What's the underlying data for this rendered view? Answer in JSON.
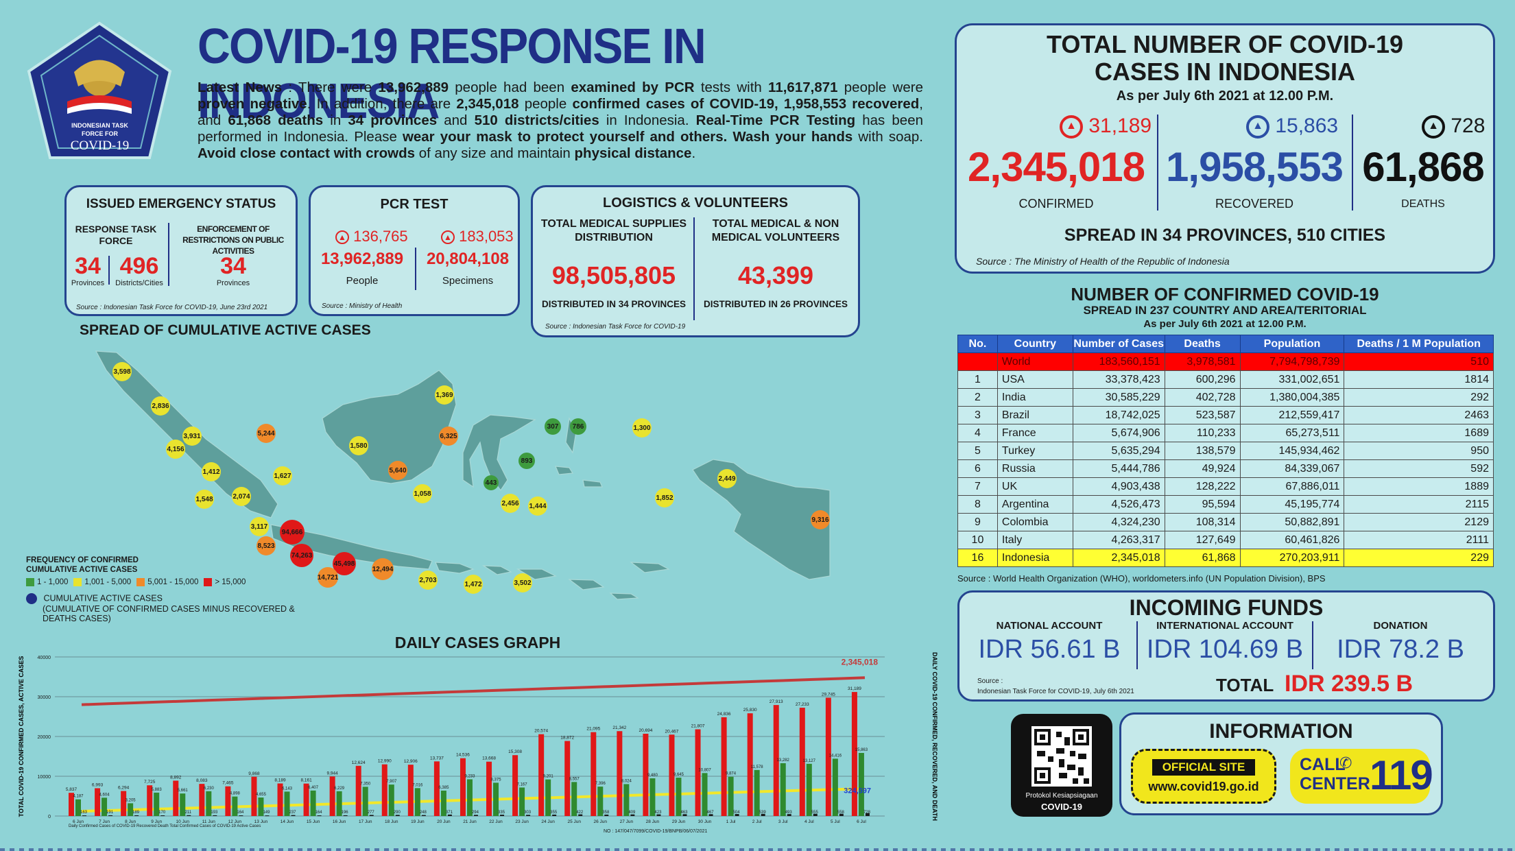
{
  "header": {
    "title": "COVID-19 RESPONSE IN INDONESIA",
    "logo_text_1": "INDONESIAN TASK",
    "logo_text_2": "FORCE FOR",
    "logo_text_3": "COVID-19",
    "news_html": "<b>Latest News</b> : There were <b>13,962,889</b> people had been <b>examined by PCR</b> tests with <b>11,617,871</b> people were <b>proven negative</b>. In addition, there are <b>2,345,018</b> people <b>confirmed cases of COVID-19, 1,958,553 recovered</b>, and <b>61,868 deaths</b> in <b>34 provinces</b> and <b>510 districts/cities</b> in Indonesia. <b>Real-Time PCR Testing</b> has been performed in Indonesia. Please <b>wear your mask to protect yourself and others. Wash your hands</b> with soap. <b>Avoid close contact with crowds</b> of any size and maintain <b>physical distance</b>."
  },
  "emergency": {
    "title": "ISSUED EMERGENCY STATUS",
    "col1_title": "RESPONSE TASK FORCE",
    "col2_title": "ENFORCEMENT OF RESTRICTIONS ON PUBLIC ACTIVITIES",
    "prov_value": "34",
    "prov_label": "Provinces",
    "dist_value": "496",
    "dist_label": "Districts/Cities",
    "enf_value": "34",
    "enf_label": "Provinces",
    "source": "Source : Indonesian Task Force for COVID-19, June 23rd 2021"
  },
  "pcr": {
    "title": "PCR TEST",
    "people_delta": "136,765",
    "specimens_delta": "183,053",
    "people_value": "13,962,889",
    "specimens_value": "20,804,108",
    "people_label": "People",
    "specimens_label": "Specimens",
    "source": "Source : Ministry of Health"
  },
  "logistics": {
    "title": "LOGISTICS & VOLUNTEERS",
    "col1_title": "TOTAL MEDICAL SUPPLIES DISTRIBUTION",
    "col1_value": "98,505,805",
    "col1_note": "DISTRIBUTED IN 34 PROVINCES",
    "col2_title": "TOTAL MEDICAL & NON MEDICAL VOLUNTEERS",
    "col2_value": "43,399",
    "col2_note": "DISTRIBUTED IN 26 PROVINCES",
    "source": "Source : Indonesian Task Force for COVID-19"
  },
  "totals": {
    "title_1": "TOTAL NUMBER OF COVID-19",
    "title_2": "CASES IN INDONESIA",
    "asof": "As per July 6th 2021 at 12.00 P.M.",
    "confirmed_delta": "31,189",
    "confirmed_value": "2,345,018",
    "confirmed_label": "CONFIRMED",
    "recovered_delta": "15,863",
    "recovered_value": "1,958,553",
    "recovered_label": "RECOVERED",
    "deaths_delta": "728",
    "deaths_value": "61,868",
    "deaths_label": "DEATHS",
    "spread": "SPREAD IN 34 PROVINCES, 510 CITIES",
    "source": "Source : The Ministry of Health of the Republic of Indonesia",
    "color_confirmed": "#e02424",
    "color_recovered": "#2b4ea5",
    "color_deaths": "#111111"
  },
  "world_table": {
    "title": "NUMBER OF CONFIRMED COVID-19",
    "subtitle": "SPREAD IN 237 COUNTRY AND AREA/TERITORIAL",
    "asof": "As per July 6th 2021 at 12.00 P.M.",
    "headers": [
      "No.",
      "Country",
      "Number of Cases",
      "Deaths",
      "Population",
      "Deaths / 1 M Population"
    ],
    "rows": [
      [
        "",
        "World",
        "183,560,151",
        "3,978,581",
        "7,794,798,739",
        "510"
      ],
      [
        "1",
        "USA",
        "33,378,423",
        "600,296",
        "331,002,651",
        "1814"
      ],
      [
        "2",
        "India",
        "30,585,229",
        "402,728",
        "1,380,004,385",
        "292"
      ],
      [
        "3",
        "Brazil",
        "18,742,025",
        "523,587",
        "212,559,417",
        "2463"
      ],
      [
        "4",
        "France",
        "5,674,906",
        "110,233",
        "65,273,511",
        "1689"
      ],
      [
        "5",
        "Turkey",
        "5,635,294",
        "138,579",
        "145,934,462",
        "950"
      ],
      [
        "6",
        "Russia",
        "5,444,786",
        "49,924",
        "84,339,067",
        "592"
      ],
      [
        "7",
        "UK",
        "4,903,438",
        "128,222",
        "67,886,011",
        "1889"
      ],
      [
        "8",
        "Argentina",
        "4,526,473",
        "95,594",
        "45,195,774",
        "2115"
      ],
      [
        "9",
        "Colombia",
        "4,324,230",
        "108,314",
        "50,882,891",
        "2129"
      ],
      [
        "10",
        "Italy",
        "4,263,317",
        "127,649",
        "60,461,826",
        "2111"
      ],
      [
        "16",
        "Indonesia",
        "2,345,018",
        "61,868",
        "270,203,911",
        "229"
      ]
    ],
    "source": "Source : World Health Organization (WHO), worldometers.info (UN Population Division), BPS"
  },
  "funds": {
    "title": "INCOMING FUNDS",
    "national_label": "NATIONAL ACCOUNT",
    "national_value": "IDR 56.61 B",
    "international_label": "INTERNATIONAL ACCOUNT",
    "international_value": "IDR 104.69 B",
    "donation_label": "DONATION",
    "donation_value": "IDR 78.2 B",
    "source_1": "Source :",
    "source_2": "Indonesian Task Force for COVID-19, July 6th 2021",
    "total_label": "TOTAL",
    "total_value": "IDR 239.5 B"
  },
  "info": {
    "qr_caption_1": "Protokol Kesiapsiagaan",
    "qr_caption_2": "COVID-19",
    "title": "INFORMATION",
    "site_label": "OFFICIAL SITE",
    "site_url": "www.covid19.go.id",
    "call_label_1": "CALL",
    "call_label_2": "CENTER",
    "call_number": "119"
  },
  "map": {
    "title": "SPREAD OF CUMULATIVE ACTIVE CASES",
    "legend_title_1": "FREQUENCY OF CONFIRMED",
    "legend_title_2": "CUMULATIVE ACTIVE CASES",
    "legend_items": [
      {
        "label": "1 - 1,000",
        "color": "#3e9b3e"
      },
      {
        "label": "1,001 - 5,000",
        "color": "#e9e32e"
      },
      {
        "label": "5,001 - 15,000",
        "color": "#f08a2a"
      },
      {
        "label": "> 15,000",
        "color": "#e01818"
      }
    ],
    "legend_dot_label": "CUMULATIVE ACTIVE CASES",
    "legend_dot_note": "(CUMULATIVE OF CONFIRMED CASES MINUS RECOVERED & DEATHS CASES)",
    "bubbles": [
      {
        "v": "3,598",
        "c": "y"
      },
      {
        "v": "2,836",
        "c": "y"
      },
      {
        "v": "4,156",
        "c": "y"
      },
      {
        "v": "3,931",
        "c": "y"
      },
      {
        "v": "5,244",
        "c": "o"
      },
      {
        "v": "1,412",
        "c": "y"
      },
      {
        "v": "1,548",
        "c": "y"
      },
      {
        "v": "2,074",
        "c": "y"
      },
      {
        "v": "1,627",
        "c": "y"
      },
      {
        "v": "3,117",
        "c": "y"
      },
      {
        "v": "8,523",
        "c": "o"
      },
      {
        "v": "94,666",
        "c": "r"
      },
      {
        "v": "74,263",
        "c": "r"
      },
      {
        "v": "45,498",
        "c": "r"
      },
      {
        "v": "14,721",
        "c": "o"
      },
      {
        "v": "12,494",
        "c": "o"
      },
      {
        "v": "2,703",
        "c": "y"
      },
      {
        "v": "1,472",
        "c": "y"
      },
      {
        "v": "3,502",
        "c": "y"
      },
      {
        "v": "1,580",
        "c": "y"
      },
      {
        "v": "5,640",
        "c": "o"
      },
      {
        "v": "1,058",
        "c": "y"
      },
      {
        "v": "1,369",
        "c": "y"
      },
      {
        "v": "6,325",
        "c": "o"
      },
      {
        "v": "307",
        "c": "g"
      },
      {
        "v": "786",
        "c": "g"
      },
      {
        "v": "893",
        "c": "g"
      },
      {
        "v": "443",
        "c": "g"
      },
      {
        "v": "2,456",
        "c": "y"
      },
      {
        "v": "1,444",
        "c": "y"
      },
      {
        "v": "1,300",
        "c": "y"
      },
      {
        "v": "2,449",
        "c": "y"
      },
      {
        "v": "1,852",
        "c": "y"
      },
      {
        "v": "9,316",
        "c": "o"
      }
    ]
  },
  "chart_data": {
    "type": "bar",
    "title": "DAILY CASES GRAPH",
    "ylabel_left": "TOTAL COVID-19 CONFIRMED CASES, ACTIVE CASES",
    "ylabel_right": "DAILY COVID-19 CONFIRMED, RECOVERED, AND DEATH",
    "ylim": [
      0,
      40000
    ],
    "yticks": [
      "0",
      "10000",
      "20000",
      "30000",
      "40000"
    ],
    "categories": [
      "6 Jun",
      "7 Jun",
      "8 Jun",
      "9 Jun",
      "10 Jun",
      "11 Jun",
      "12 Jun",
      "13 Jun",
      "14 Jun",
      "15 Jun",
      "16 Jun",
      "17 Jun",
      "18 Jun",
      "19 Jun",
      "20 Jun",
      "21 Jun",
      "22 Jun",
      "23 Jun",
      "24 Jun",
      "25 Jun",
      "26 Jun",
      "27 Jun",
      "28 Jun",
      "29 Jun",
      "30 Jun",
      "1 Jul",
      "2 Jul",
      "3 Jul",
      "4 Jul",
      "5 Jul",
      "6 Jul"
    ],
    "series": [
      {
        "name": "Daily Confirmed Cases of COVID-19",
        "color": "#e01818",
        "values": [
          5837,
          6993,
          6294,
          7725,
          8892,
          8083,
          7465,
          9868,
          8189,
          8161,
          9944,
          12624,
          12990,
          12906,
          13737,
          14536,
          13668,
          15308,
          20574,
          18872,
          21095,
          21342,
          20694,
          20467,
          21807,
          24836,
          25830,
          27913,
          27233,
          29745,
          31189
        ]
      },
      {
        "name": "Recovered",
        "color": "#2f8a2f",
        "values": [
          4187,
          4604,
          3205,
          5883,
          5661,
          6230,
          4898,
          4655,
          6143,
          6407,
          6229,
          7350,
          7907,
          7016,
          6385,
          9233,
          8375,
          7167,
          9201,
          8557,
          7396,
          8024,
          9480,
          9645,
          10807,
          9874,
          11578,
          13282,
          13127,
          14416,
          15863
        ]
      },
      {
        "name": "Death",
        "color": "#1a1a1a",
        "values": [
          163,
          191,
          189,
          170,
          211,
          193,
          164,
          149,
          237,
          164,
          196,
          277,
          290,
          248,
          371,
          294,
          335,
          303,
          355,
          422,
          358,
          409,
          423,
          463,
          467,
          504,
          539,
          493,
          555,
          558,
          728
        ]
      }
    ],
    "cumulative_label": "2,345,018",
    "active_label": "324,597",
    "legend_text": "Daily Confirmed Cases of COVID-19  Recovered  Death  Total Confirmed Cases of COVID-19  Active Cases",
    "doc_number": "NO : 147/047/7099/COVID-19/BNPB/06/07/2021"
  }
}
